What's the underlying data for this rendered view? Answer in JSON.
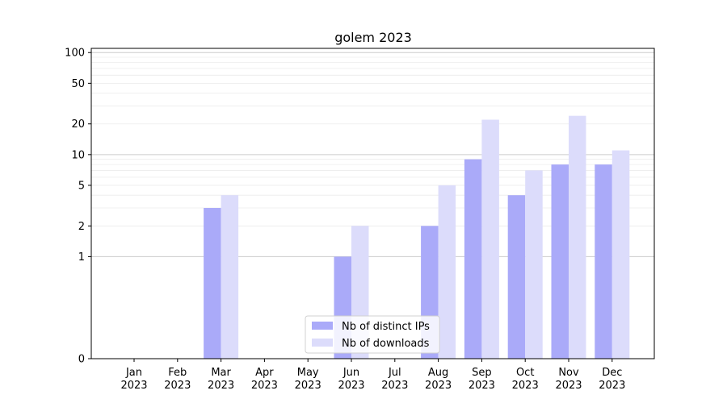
{
  "chart_data": {
    "type": "bar",
    "title": "golem 2023",
    "xlabel": "",
    "ylabel": "",
    "y_scale": "symlog",
    "ylim": [
      0,
      110
    ],
    "yticks": [
      0,
      1,
      2,
      5,
      10,
      20,
      50,
      100
    ],
    "categories": [
      "Jan\n2023",
      "Feb\n2023",
      "Mar\n2023",
      "Apr\n2023",
      "May\n2023",
      "Jun\n2023",
      "Jul\n2023",
      "Aug\n2023",
      "Sep\n2023",
      "Oct\n2023",
      "Nov\n2023",
      "Dec\n2023"
    ],
    "series": [
      {
        "name": "Nb of distinct IPs",
        "color": "#aaaaf9",
        "values": [
          0,
          0,
          3,
          0,
          0,
          1,
          0,
          2,
          9,
          4,
          8,
          8
        ]
      },
      {
        "name": "Nb of downloads",
        "color": "#dcdcfb",
        "values": [
          0,
          0,
          4,
          0,
          0,
          2,
          0,
          5,
          22,
          7,
          24,
          11
        ]
      }
    ],
    "grid": true,
    "legend_position": "bottom-center"
  }
}
